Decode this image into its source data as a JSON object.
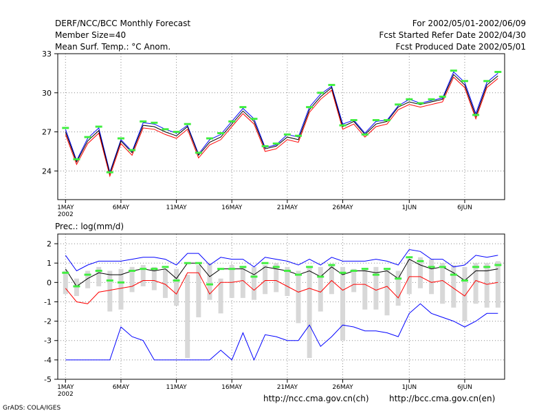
{
  "header": {
    "title": "DERF/NCC/BCC Monthly Forecast",
    "member_size": "Member Size=40",
    "variable": "Mean Surf. Temp.: °C Anom.",
    "period": "For 2002/05/01-2002/06/09",
    "started": "Fcst Started Refer Date 2002/04/30",
    "produced": "Fcst Produced Date 2002/05/01"
  },
  "footer": {
    "credit": "GrADS: COLA/IGES",
    "url_ncc": "http://ncc.cma.gov.cn(ch)",
    "url_bcc": "http://bcc.cma.gov.cn(en)"
  },
  "colors": {
    "ensemble_mean": "#000000",
    "upper": "#0000ff",
    "lower": "#ff0000",
    "observed": "#40ee40",
    "spread": "#d8d8d8",
    "grid": "#888888"
  },
  "chart_data": [
    {
      "type": "line",
      "title": "Mean Surf. Temp.: °C Anom.",
      "xlabel": "",
      "ylabel": "",
      "x_tick_labels": [
        "1MAY",
        "6MAY",
        "11MAY",
        "16MAY",
        "21MAY",
        "26MAY",
        "1JUN",
        "6JUN"
      ],
      "x_tick_sub": "2002",
      "x_tick_days": [
        1,
        6,
        11,
        16,
        21,
        26,
        32,
        37
      ],
      "xlim": [
        0.3,
        40.6
      ],
      "ylim": [
        21.8,
        33
      ],
      "y_ticks": [
        24,
        27,
        30,
        33
      ],
      "grid": true,
      "days": [
        1,
        2,
        3,
        4,
        5,
        6,
        7,
        8,
        9,
        10,
        11,
        12,
        13,
        14,
        15,
        16,
        17,
        18,
        19,
        20,
        21,
        22,
        23,
        24,
        25,
        26,
        27,
        28,
        29,
        30,
        31,
        32,
        33,
        34,
        35,
        36,
        37,
        38,
        39,
        40
      ],
      "series": [
        {
          "name": "upper",
          "values": [
            27.2,
            24.8,
            26.5,
            27.3,
            23.9,
            26.4,
            25.5,
            27.7,
            27.6,
            27.2,
            26.9,
            27.5,
            25.3,
            26.4,
            26.8,
            27.8,
            28.8,
            28.0,
            25.8,
            26.0,
            26.8,
            26.6,
            28.9,
            29.9,
            30.5,
            27.6,
            27.9,
            26.9,
            27.8,
            27.9,
            29.0,
            29.5,
            29.2,
            29.4,
            29.6,
            31.6,
            30.8,
            28.4,
            30.8,
            31.5
          ]
        },
        {
          "name": "ensemble_mean",
          "values": [
            27.0,
            24.7,
            26.3,
            27.1,
            23.8,
            26.3,
            25.4,
            27.5,
            27.4,
            27.0,
            26.7,
            27.4,
            25.2,
            26.2,
            26.6,
            27.6,
            28.6,
            27.8,
            25.7,
            25.9,
            26.6,
            26.4,
            28.7,
            29.7,
            30.4,
            27.4,
            27.8,
            26.8,
            27.6,
            27.8,
            28.9,
            29.3,
            29.1,
            29.3,
            29.5,
            31.4,
            30.6,
            28.2,
            30.6,
            31.3
          ]
        },
        {
          "name": "lower",
          "values": [
            26.8,
            24.5,
            26.1,
            26.9,
            23.6,
            26.1,
            25.2,
            27.3,
            27.2,
            26.8,
            26.5,
            27.2,
            25.0,
            26.0,
            26.4,
            27.4,
            28.4,
            27.6,
            25.5,
            25.7,
            26.4,
            26.2,
            28.5,
            29.5,
            30.2,
            27.2,
            27.6,
            26.6,
            27.4,
            27.6,
            28.7,
            29.1,
            28.9,
            29.1,
            29.3,
            31.2,
            30.4,
            28.0,
            30.4,
            31.1
          ]
        },
        {
          "name": "observed",
          "values": [
            27.3,
            24.9,
            26.6,
            27.4,
            23.9,
            26.5,
            25.6,
            27.8,
            27.7,
            27.2,
            27.0,
            27.6,
            25.4,
            26.5,
            26.9,
            27.8,
            28.9,
            28.0,
            25.9,
            26.1,
            26.8,
            26.7,
            28.9,
            30.0,
            30.6,
            27.5,
            27.9,
            26.8,
            27.9,
            27.9,
            29.1,
            29.5,
            29.2,
            29.5,
            29.7,
            31.7,
            30.9,
            28.3,
            30.9,
            31.6
          ]
        }
      ]
    },
    {
      "type": "line",
      "title": "Prec.: log(mm/d)",
      "xlabel": "",
      "ylabel": "",
      "x_tick_labels": [
        "1MAY",
        "6MAY",
        "11MAY",
        "16MAY",
        "21MAY",
        "26MAY",
        "1JUN",
        "6JUN"
      ],
      "x_tick_sub": "2002",
      "x_tick_days": [
        1,
        6,
        11,
        16,
        21,
        26,
        32,
        37
      ],
      "xlim": [
        0.3,
        40.6
      ],
      "ylim": [
        -5,
        2.5
      ],
      "y_ticks": [
        -5,
        -4,
        -3,
        -2,
        -1,
        0,
        1,
        2
      ],
      "grid": true,
      "days": [
        1,
        2,
        3,
        4,
        5,
        6,
        7,
        8,
        9,
        10,
        11,
        12,
        13,
        14,
        15,
        16,
        17,
        18,
        19,
        20,
        21,
        22,
        23,
        24,
        25,
        26,
        27,
        28,
        29,
        30,
        31,
        32,
        33,
        34,
        35,
        36,
        37,
        38,
        39,
        40
      ],
      "spread_bars": [
        [
          -0.6,
          0.6
        ],
        [
          -0.7,
          0.2
        ],
        [
          -0.3,
          0.6
        ],
        [
          -0.2,
          0.8
        ],
        [
          -1.5,
          0.6
        ],
        [
          -1.4,
          0.7
        ],
        [
          -0.5,
          0.8
        ],
        [
          -0.2,
          0.9
        ],
        [
          -0.4,
          0.8
        ],
        [
          -0.8,
          0.7
        ],
        [
          -1.2,
          0.7
        ],
        [
          -3.9,
          0.4
        ],
        [
          -1.8,
          0.9
        ],
        [
          -0.9,
          1.0
        ],
        [
          -1.6,
          0.2
        ],
        [
          -0.8,
          0.9
        ],
        [
          -0.8,
          0.8
        ],
        [
          -0.9,
          0.8
        ],
        [
          -0.6,
          0.9
        ],
        [
          -0.5,
          1.0
        ],
        [
          -0.7,
          0.8
        ],
        [
          -2.1,
          0.6
        ],
        [
          -3.9,
          0.8
        ],
        [
          -1.5,
          0.8
        ],
        [
          -0.6,
          0.9
        ],
        [
          -3.0,
          0.8
        ],
        [
          -0.5,
          0.7
        ],
        [
          -1.4,
          0.7
        ],
        [
          -1.4,
          0.8
        ],
        [
          -1.7,
          0.7
        ],
        [
          -1.2,
          0.6
        ],
        [
          -0.6,
          1.2
        ],
        [
          -0.3,
          1.3
        ],
        [
          -0.6,
          1.2
        ],
        [
          -1.1,
          1.0
        ],
        [
          -1.3,
          0.9
        ],
        [
          -2.0,
          0.8
        ],
        [
          -1.1,
          1.0
        ],
        [
          -1.3,
          1.0
        ],
        [
          -1.3,
          1.1
        ]
      ],
      "series": [
        {
          "name": "upper",
          "values": [
            1.4,
            0.6,
            0.9,
            1.1,
            1.1,
            1.1,
            1.2,
            1.3,
            1.3,
            1.2,
            0.9,
            1.5,
            1.5,
            0.9,
            1.3,
            1.2,
            1.2,
            0.8,
            1.3,
            1.2,
            1.1,
            0.9,
            1.2,
            0.9,
            1.3,
            1.1,
            1.1,
            1.1,
            1.2,
            1.1,
            0.9,
            1.7,
            1.6,
            1.2,
            1.2,
            0.8,
            0.9,
            1.4,
            1.3,
            1.4
          ]
        },
        {
          "name": "lower_extreme",
          "values": [
            -4.0,
            -4.0,
            -4.0,
            -4.0,
            -4.0,
            -2.3,
            -2.8,
            -3.0,
            -4.0,
            -4.0,
            -4.0,
            -4.0,
            -4.0,
            -4.0,
            -3.5,
            -4.0,
            -2.6,
            -4.0,
            -2.7,
            -2.8,
            -3.0,
            -3.0,
            -2.2,
            -3.3,
            -2.8,
            -2.2,
            -2.3,
            -2.5,
            -2.5,
            -2.6,
            -2.8,
            -1.6,
            -1.1,
            -1.6,
            -1.8,
            -2.0,
            -2.3,
            -2.0,
            -1.6,
            -1.6
          ]
        },
        {
          "name": "ensemble_mean",
          "values": [
            0.7,
            -0.2,
            0.2,
            0.5,
            0.4,
            0.4,
            0.6,
            0.7,
            0.6,
            0.7,
            0.2,
            1.0,
            1.0,
            0.3,
            0.7,
            0.7,
            0.7,
            0.4,
            0.8,
            0.7,
            0.6,
            0.4,
            0.6,
            0.3,
            0.8,
            0.4,
            0.6,
            0.6,
            0.5,
            0.6,
            0.2,
            1.2,
            0.9,
            0.7,
            0.8,
            0.5,
            0.1,
            0.6,
            0.6,
            0.7
          ]
        },
        {
          "name": "lower",
          "values": [
            -0.3,
            -1.0,
            -1.1,
            -0.5,
            -0.4,
            -0.3,
            -0.2,
            0.1,
            0.1,
            -0.1,
            -0.6,
            0.5,
            0.5,
            -0.6,
            0.0,
            0.0,
            0.1,
            -0.4,
            0.1,
            0.1,
            -0.2,
            -0.5,
            -0.3,
            -0.5,
            0.1,
            -0.4,
            -0.1,
            -0.1,
            -0.4,
            -0.2,
            -0.8,
            0.3,
            0.3,
            0.0,
            0.1,
            -0.3,
            -0.7,
            0.1,
            -0.1,
            0.0
          ]
        },
        {
          "name": "observed",
          "values": [
            0.5,
            -0.2,
            0.4,
            0.6,
            0.1,
            0.0,
            0.6,
            0.7,
            0.7,
            0.8,
            0.1,
            1.0,
            1.0,
            -0.1,
            0.7,
            0.7,
            0.8,
            0.3,
            1.0,
            0.8,
            0.6,
            0.4,
            0.8,
            0.3,
            0.9,
            0.5,
            0.6,
            0.7,
            0.4,
            0.7,
            0.2,
            1.3,
            1.1,
            0.8,
            0.8,
            0.4,
            0.1,
            0.8,
            0.8,
            0.9
          ]
        }
      ]
    }
  ]
}
